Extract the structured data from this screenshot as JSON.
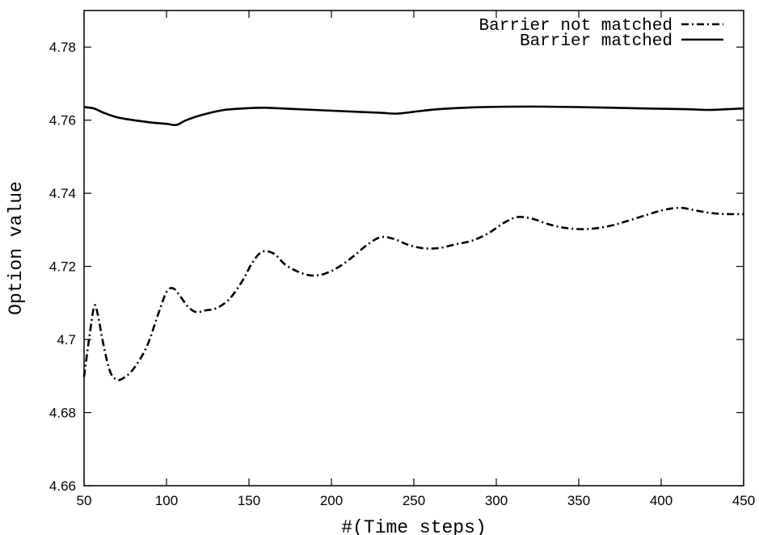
{
  "chart_data": {
    "type": "line",
    "title": "",
    "xlabel": "#(Time steps)",
    "ylabel": "Option value",
    "xlim": [
      50,
      450
    ],
    "ylim": [
      4.66,
      4.79
    ],
    "x_ticks": [
      50,
      100,
      150,
      200,
      250,
      300,
      350,
      400,
      450
    ],
    "x_tick_labels": [
      "50",
      "100",
      "150",
      "200",
      "250",
      "300",
      "350",
      "400",
      "450"
    ],
    "y_ticks": [
      4.66,
      4.68,
      4.7,
      4.72,
      4.74,
      4.76,
      4.78
    ],
    "y_tick_labels": [
      "4.66",
      "4.68",
      "4.7",
      "4.72",
      "4.74",
      "4.76",
      "4.78"
    ],
    "grid": false,
    "legend_position": "top-right",
    "series": [
      {
        "name": "Barrier not matched",
        "style": "dash-dot",
        "color": "#000000",
        "points": [
          [
            50,
            4.6898
          ],
          [
            53,
            4.7
          ],
          [
            56,
            4.7088
          ],
          [
            58,
            4.7075
          ],
          [
            62,
            4.698
          ],
          [
            66,
            4.691
          ],
          [
            70,
            4.689
          ],
          [
            74,
            4.6895
          ],
          [
            80,
            4.692
          ],
          [
            88,
            4.698
          ],
          [
            95,
            4.707
          ],
          [
            100,
            4.713
          ],
          [
            104,
            4.714
          ],
          [
            108,
            4.712
          ],
          [
            113,
            4.709
          ],
          [
            118,
            4.7075
          ],
          [
            124,
            4.708
          ],
          [
            130,
            4.7085
          ],
          [
            138,
            4.711
          ],
          [
            146,
            4.716
          ],
          [
            152,
            4.721
          ],
          [
            158,
            4.724
          ],
          [
            165,
            4.7235
          ],
          [
            172,
            4.7205
          ],
          [
            180,
            4.7185
          ],
          [
            188,
            4.7175
          ],
          [
            196,
            4.718
          ],
          [
            205,
            4.72
          ],
          [
            214,
            4.723
          ],
          [
            222,
            4.726
          ],
          [
            230,
            4.728
          ],
          [
            238,
            4.7275
          ],
          [
            246,
            4.726
          ],
          [
            255,
            4.725
          ],
          [
            265,
            4.725
          ],
          [
            275,
            4.726
          ],
          [
            285,
            4.727
          ],
          [
            295,
            4.729
          ],
          [
            305,
            4.732
          ],
          [
            313,
            4.7335
          ],
          [
            322,
            4.733
          ],
          [
            332,
            4.7315
          ],
          [
            342,
            4.7305
          ],
          [
            355,
            4.7302
          ],
          [
            368,
            4.731
          ],
          [
            380,
            4.7325
          ],
          [
            392,
            4.7342
          ],
          [
            402,
            4.7355
          ],
          [
            412,
            4.736
          ],
          [
            422,
            4.7352
          ],
          [
            432,
            4.7345
          ],
          [
            441,
            4.7343
          ],
          [
            450,
            4.7343
          ]
        ]
      },
      {
        "name": "Barrier matched",
        "style": "solid",
        "color": "#000000",
        "points": [
          [
            50,
            4.7636
          ],
          [
            56,
            4.7632
          ],
          [
            62,
            4.762
          ],
          [
            70,
            4.7608
          ],
          [
            80,
            4.76
          ],
          [
            90,
            4.7594
          ],
          [
            100,
            4.759
          ],
          [
            106,
            4.7587
          ],
          [
            112,
            4.76
          ],
          [
            122,
            4.7615
          ],
          [
            135,
            4.7628
          ],
          [
            150,
            4.7633
          ],
          [
            160,
            4.7634
          ],
          [
            175,
            4.7631
          ],
          [
            195,
            4.7627
          ],
          [
            215,
            4.7623
          ],
          [
            230,
            4.762
          ],
          [
            240,
            4.7618
          ],
          [
            250,
            4.7623
          ],
          [
            265,
            4.763
          ],
          [
            285,
            4.7635
          ],
          [
            310,
            4.7637
          ],
          [
            330,
            4.7637
          ],
          [
            360,
            4.7635
          ],
          [
            390,
            4.7632
          ],
          [
            415,
            4.763
          ],
          [
            428,
            4.7628
          ],
          [
            440,
            4.763
          ],
          [
            450,
            4.7632
          ]
        ]
      }
    ]
  }
}
